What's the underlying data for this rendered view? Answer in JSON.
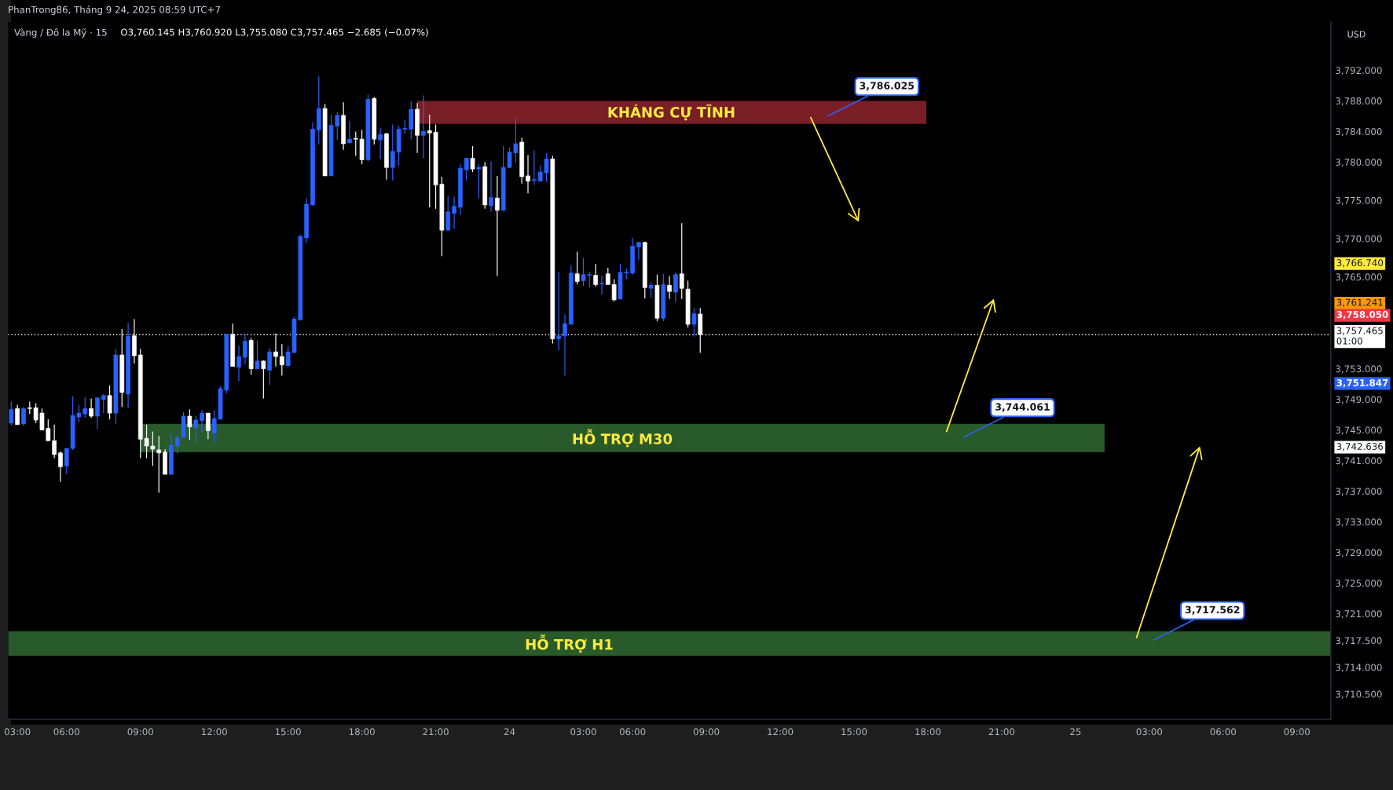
{
  "chart_data": {
    "type": "candlestick",
    "title": "Vàng / Đô la Mỹ · 15",
    "subtitle": "O3,760.145 H3,760.920 L3,755.080 C3,757.465 −2.685 (−0.07%)",
    "categories": [
      null,
      "03:00",
      null,
      null,
      null,
      null,
      null,
      null,
      null,
      "06:00",
      null,
      null,
      null,
      null,
      null,
      null,
      null,
      null,
      null,
      null,
      null,
      "09:00",
      null,
      null,
      null,
      null,
      null,
      null,
      null,
      null,
      null,
      null,
      null,
      "12:00",
      null,
      null,
      null,
      null,
      null,
      null,
      null,
      null,
      null,
      null,
      null,
      "15:00",
      null,
      null,
      null,
      null,
      null,
      null,
      null,
      null,
      null,
      null,
      null,
      "18:00",
      null,
      null,
      null,
      null,
      null,
      null,
      null,
      null,
      null,
      null,
      null,
      "21:00",
      null,
      null,
      null,
      null,
      null,
      null,
      null,
      null,
      null,
      null,
      null,
      "24",
      null,
      null,
      null,
      null,
      null,
      null,
      null,
      null,
      null,
      null,
      null,
      "03:00",
      null,
      null,
      null,
      null,
      null,
      null,
      null,
      "06:00",
      null,
      null,
      null,
      null,
      null,
      null,
      null,
      null,
      null,
      null,
      null,
      "09:00",
      null,
      null,
      null,
      null,
      null,
      null,
      null,
      null,
      null,
      null,
      null,
      "12:00",
      null,
      null,
      null,
      null,
      null,
      null,
      null,
      null,
      null,
      null,
      null,
      "15:00",
      null,
      null,
      null,
      null,
      null,
      null,
      null,
      null,
      null,
      null,
      null,
      "18:00",
      null,
      null,
      null,
      null,
      null,
      null,
      null,
      null,
      null,
      null,
      null,
      "21:00",
      null,
      null,
      null,
      null,
      null,
      null,
      null,
      null,
      null,
      null,
      null,
      "25",
      null,
      null,
      null,
      null,
      null,
      null,
      null,
      null,
      null,
      null,
      null,
      "03:00",
      null,
      null,
      null,
      null,
      null,
      null,
      null,
      null,
      null,
      null,
      null,
      "06:00",
      null,
      null,
      null,
      null,
      null,
      null,
      null,
      null,
      null,
      null,
      null,
      "09:00",
      null,
      null,
      null,
      null,
      null
    ],
    "ohlc": [
      [
        3745.9,
        3748.7,
        3745.6,
        3747.7
      ],
      [
        3747.8,
        3748.3,
        3745.7,
        3745.7
      ],
      [
        3745.8,
        3748.0,
        3745.6,
        3747.8
      ],
      [
        3747.9,
        3748.7,
        3747.1,
        3747.8
      ],
      [
        3747.9,
        3748.5,
        3745.9,
        3746.3
      ],
      [
        3747.2,
        3747.8,
        3745.0,
        3745.0
      ],
      [
        3745.2,
        3746.4,
        3743.6,
        3743.6
      ],
      [
        3743.6,
        3745.7,
        3741.3,
        3741.8
      ],
      [
        3742.0,
        3742.2,
        3738.2,
        3740.2
      ],
      [
        3740.3,
        3742.6,
        3739.2,
        3742.6
      ],
      [
        3742.6,
        3749.4,
        3742.4,
        3746.9
      ],
      [
        3746.7,
        3748.3,
        3746.0,
        3747.2
      ],
      [
        3747.1,
        3749.3,
        3746.6,
        3747.8
      ],
      [
        3747.8,
        3749.1,
        3746.6,
        3746.8
      ],
      [
        3746.8,
        3749.3,
        3745.1,
        3749.2
      ],
      [
        3749.0,
        3749.7,
        3747.2,
        3749.5
      ],
      [
        3749.5,
        3750.8,
        3746.4,
        3747.2
      ],
      [
        3747.2,
        3755.6,
        3745.8,
        3754.8
      ],
      [
        3754.8,
        3758.2,
        3748.0,
        3749.9
      ],
      [
        3749.7,
        3759.0,
        3747.9,
        3757.2
      ],
      [
        3757.3,
        3759.5,
        3753.7,
        3754.7
      ],
      [
        3754.8,
        3755.6,
        3741.3,
        3743.8
      ],
      [
        3743.9,
        3745.7,
        3741.3,
        3742.9
      ],
      [
        3742.9,
        3744.8,
        3740.3,
        3742.5
      ],
      [
        3742.4,
        3744.2,
        3736.8,
        3742.0
      ],
      [
        3742.1,
        3742.5,
        3739.2,
        3739.2
      ],
      [
        3739.2,
        3744.6,
        3739.2,
        3743.0
      ],
      [
        3742.9,
        3744.3,
        3741.9,
        3744.0
      ],
      [
        3744.0,
        3747.3,
        3744.0,
        3746.8
      ],
      [
        3746.8,
        3747.7,
        3743.7,
        3745.4
      ],
      [
        3745.3,
        3746.8,
        3743.3,
        3746.3
      ],
      [
        3746.2,
        3747.6,
        3744.7,
        3747.2
      ],
      [
        3747.2,
        3747.2,
        3743.8,
        3744.9
      ],
      [
        3744.6,
        3747.6,
        3743.4,
        3746.5
      ],
      [
        3746.4,
        3750.7,
        3746.4,
        3750.4
      ],
      [
        3750.2,
        3757.5,
        3749.8,
        3757.5
      ],
      [
        3757.5,
        3758.9,
        3753.3,
        3753.3
      ],
      [
        3753.2,
        3756.0,
        3751.4,
        3754.6
      ],
      [
        3754.5,
        3757.6,
        3753.6,
        3756.6
      ],
      [
        3756.7,
        3757.0,
        3752.2,
        3753.0
      ],
      [
        3753.0,
        3756.7,
        3753.0,
        3754.0
      ],
      [
        3754.0,
        3754.1,
        3749.1,
        3753.0
      ],
      [
        3752.8,
        3755.7,
        3750.9,
        3755.2
      ],
      [
        3755.2,
        3757.6,
        3753.3,
        3754.6
      ],
      [
        3754.6,
        3756.2,
        3752.1,
        3753.5
      ],
      [
        3753.4,
        3756.0,
        3753.3,
        3755.2
      ],
      [
        3755.1,
        3759.8,
        3755.1,
        3759.5
      ],
      [
        3759.4,
        3770.5,
        3759.3,
        3770.3
      ],
      [
        3770.1,
        3775.3,
        3769.4,
        3774.5
      ],
      [
        3774.4,
        3785.2,
        3774.3,
        3784.3
      ],
      [
        3784.2,
        3791.2,
        3782.3,
        3787.0
      ],
      [
        3787.0,
        3787.6,
        3778.2,
        3778.2
      ],
      [
        3778.2,
        3786.2,
        3778.2,
        3784.8
      ],
      [
        3784.7,
        3786.5,
        3782.9,
        3786.1
      ],
      [
        3786.1,
        3787.8,
        3781.6,
        3782.4
      ],
      [
        3782.5,
        3785.4,
        3782.5,
        3783.0
      ],
      [
        3783.1,
        3784.0,
        3780.8,
        3783.0
      ],
      [
        3783.0,
        3784.2,
        3779.7,
        3780.3
      ],
      [
        3780.3,
        3788.8,
        3780.1,
        3788.2
      ],
      [
        3788.3,
        3788.5,
        3782.3,
        3783.0
      ],
      [
        3782.9,
        3784.5,
        3780.4,
        3783.6
      ],
      [
        3783.7,
        3783.8,
        3777.7,
        3779.3
      ],
      [
        3779.3,
        3784.9,
        3777.6,
        3781.4
      ],
      [
        3781.3,
        3784.7,
        3779.5,
        3784.3
      ],
      [
        3784.3,
        3785.5,
        3783.7,
        3784.4
      ],
      [
        3784.3,
        3787.9,
        3783.0,
        3786.9
      ],
      [
        3786.9,
        3787.7,
        3781.2,
        3783.5
      ],
      [
        3783.5,
        3788.7,
        3780.5,
        3784.0
      ],
      [
        3784.1,
        3786.2,
        3774.1,
        3783.8
      ],
      [
        3783.9,
        3784.9,
        3773.9,
        3777.0
      ],
      [
        3777.1,
        3778.1,
        3767.7,
        3771.1
      ],
      [
        3771.1,
        3775.6,
        3771.0,
        3773.5
      ],
      [
        3773.3,
        3775.5,
        3771.3,
        3774.2
      ],
      [
        3774.1,
        3779.7,
        3773.1,
        3779.2
      ],
      [
        3779.0,
        3780.5,
        3777.6,
        3780.5
      ],
      [
        3780.5,
        3782.1,
        3778.7,
        3779.1
      ],
      [
        3779.1,
        3779.7,
        3775.3,
        3779.3
      ],
      [
        3779.4,
        3780.0,
        3773.9,
        3774.4
      ],
      [
        3774.3,
        3780.1,
        3773.5,
        3775.4
      ],
      [
        3775.3,
        3778.2,
        3765.1,
        3773.7
      ],
      [
        3773.7,
        3782.1,
        3773.6,
        3779.3
      ],
      [
        3779.3,
        3781.9,
        3779.2,
        3781.3
      ],
      [
        3781.2,
        3785.8,
        3779.9,
        3782.4
      ],
      [
        3782.6,
        3783.2,
        3777.2,
        3778.1
      ],
      [
        3778.2,
        3780.9,
        3775.9,
        3777.5
      ],
      [
        3777.6,
        3781.5,
        3777.0,
        3777.7
      ],
      [
        3777.5,
        3779.5,
        3777.5,
        3778.7
      ],
      [
        3778.6,
        3781.2,
        3777.4,
        3780.4
      ],
      [
        3780.4,
        3780.8,
        3756.3,
        3756.9
      ],
      [
        3756.9,
        3765.7,
        3755.4,
        3757.3
      ],
      [
        3757.3,
        3760.1,
        3752.1,
        3758.9
      ],
      [
        3758.8,
        3766.5,
        3758.8,
        3765.5
      ],
      [
        3765.4,
        3768.3,
        3764.0,
        3764.4
      ],
      [
        3764.5,
        3767.5,
        3763.8,
        3765.3
      ],
      [
        3765.2,
        3765.7,
        3763.6,
        3765.3
      ],
      [
        3765.2,
        3766.7,
        3763.7,
        3764.0
      ],
      [
        3764.1,
        3765.2,
        3762.7,
        3764.2
      ],
      [
        3765.4,
        3766.2,
        3764.0,
        3764.0
      ],
      [
        3764.0,
        3764.7,
        3761.8,
        3762.0
      ],
      [
        3762.1,
        3766.7,
        3762.1,
        3765.6
      ],
      [
        3765.5,
        3766.1,
        3764.7,
        3765.6
      ],
      [
        3765.5,
        3770.1,
        3765.3,
        3769.0
      ],
      [
        3768.9,
        3769.6,
        3767.2,
        3769.5
      ],
      [
        3769.5,
        3769.6,
        3762.2,
        3763.6
      ],
      [
        3763.5,
        3764.3,
        3762.3,
        3763.9
      ],
      [
        3763.9,
        3765.3,
        3759.2,
        3759.6
      ],
      [
        3759.6,
        3765.4,
        3759.2,
        3764.0
      ],
      [
        3763.9,
        3765.1,
        3762.1,
        3763.1
      ],
      [
        3763.0,
        3765.6,
        3761.7,
        3765.3
      ],
      [
        3765.4,
        3772.0,
        3762.1,
        3763.5
      ],
      [
        3763.4,
        3764.5,
        3758.4,
        3758.8
      ],
      [
        3758.8,
        3760.9,
        3757.2,
        3760.2
      ],
      [
        3760.145,
        3760.92,
        3755.08,
        3757.465
      ],
      null,
      null,
      null,
      null,
      null,
      null,
      null,
      null,
      null,
      null,
      null,
      null,
      null,
      null,
      null,
      null,
      null,
      null,
      null,
      null,
      null,
      null,
      null,
      null,
      null,
      null,
      null,
      null,
      null,
      null,
      null,
      null,
      null,
      null,
      null,
      null,
      null,
      null,
      null,
      null,
      null,
      null,
      null,
      null,
      null,
      null,
      null,
      null,
      null,
      null,
      null,
      null,
      null,
      null,
      null,
      null,
      null,
      null,
      null,
      null,
      null,
      null,
      null,
      null,
      null,
      null,
      null,
      null,
      null,
      null,
      null,
      null,
      null,
      null,
      null,
      null,
      null,
      null,
      null,
      null,
      null,
      null,
      null,
      null,
      null,
      null,
      null,
      null,
      null,
      null,
      null,
      null,
      null,
      null,
      null,
      null,
      null,
      null,
      null,
      null,
      null,
      null
    ],
    "colors": [
      "#2962ff",
      "#ffffff",
      "#2962ff",
      "#ffffff",
      "#ffffff",
      "#ffffff",
      "#ffffff",
      "#ffffff",
      "#ffffff",
      "#2962ff",
      "#2962ff",
      "#2962ff",
      "#2962ff",
      "#ffffff",
      "#2962ff",
      "#2962ff",
      "#ffffff",
      "#2962ff",
      "#ffffff",
      "#2962ff",
      "#ffffff",
      "#ffffff",
      "#ffffff",
      "#ffffff",
      "#ffffff",
      "#ffffff",
      "#2962ff",
      "#2962ff",
      "#2962ff",
      "#ffffff",
      "#2962ff",
      "#2962ff",
      "#ffffff",
      "#2962ff",
      "#2962ff",
      "#2962ff",
      "#ffffff",
      "#2962ff",
      "#2962ff",
      "#ffffff",
      "#2962ff",
      "#ffffff",
      "#2962ff",
      "#ffffff",
      "#ffffff",
      "#2962ff",
      "#2962ff",
      "#2962ff",
      "#2962ff",
      "#2962ff",
      "#2962ff",
      "#ffffff",
      "#2962ff",
      "#2962ff",
      "#ffffff",
      "#2962ff",
      "#ffffff",
      "#ffffff",
      "#2962ff",
      "#ffffff",
      "#2962ff",
      "#ffffff",
      "#2962ff",
      "#2962ff",
      "#2962ff",
      "#2962ff",
      "#ffffff",
      "#2962ff",
      "#ffffff",
      "#ffffff",
      "#ffffff",
      "#2962ff",
      "#2962ff",
      "#2962ff",
      "#2962ff",
      "#ffffff",
      "#2962ff",
      "#ffffff",
      "#2962ff",
      "#ffffff",
      "#2962ff",
      "#2962ff",
      "#2962ff",
      "#ffffff",
      "#ffffff",
      "#2962ff",
      "#2962ff",
      "#2962ff",
      "#ffffff",
      "#2962ff",
      "#2962ff",
      "#2962ff",
      "#ffffff",
      "#2962ff",
      "#2962ff",
      "#ffffff",
      "#2962ff",
      "#ffffff",
      "#ffffff",
      "#2962ff",
      "#2962ff",
      "#2962ff",
      "#2962ff",
      "#ffffff",
      "#2962ff",
      "#ffffff",
      "#2962ff",
      "#ffffff",
      "#2962ff",
      "#ffffff",
      "#ffffff",
      "#2962ff",
      "#ffffff",
      null,
      null,
      null,
      null,
      null,
      null,
      null,
      null,
      null,
      null,
      null,
      null,
      null,
      null,
      null,
      null,
      null,
      null,
      null,
      null,
      null,
      null,
      null,
      null,
      null,
      null,
      null,
      null,
      null,
      null,
      null,
      null,
      null,
      null,
      null,
      null,
      null,
      null,
      null,
      null,
      null,
      null,
      null,
      null,
      null,
      null,
      null,
      null,
      null,
      null,
      null,
      null,
      null,
      null,
      null,
      null,
      null,
      null,
      null,
      null,
      null,
      null,
      null,
      null,
      null,
      null,
      null,
      null,
      null,
      null,
      null,
      null,
      null,
      null,
      null,
      null,
      null,
      null,
      null,
      null,
      null,
      null,
      null,
      null,
      null,
      null,
      null,
      null,
      null,
      null,
      null,
      null,
      null,
      null,
      null,
      null,
      null,
      null,
      null,
      null,
      null,
      null
    ],
    "ylim": [
      3707.2,
      3798.3
    ],
    "yticks": [
      {
        "value": 3792,
        "label": "3,792.000"
      },
      {
        "value": 3788,
        "label": "3,788.000"
      },
      {
        "value": 3784,
        "label": "3,784.000"
      },
      {
        "value": 3780,
        "label": "3,780.000"
      },
      {
        "value": 3775,
        "label": "3,775.000"
      },
      {
        "value": 3770,
        "label": "3,770.000"
      },
      {
        "value": 3765,
        "label": "3,765.000"
      },
      {
        "value": 3753,
        "label": "3,753.000"
      },
      {
        "value": 3749,
        "label": "3,749.000"
      },
      {
        "value": 3745,
        "label": "3,745.000"
      },
      {
        "value": 3741,
        "label": "3,741.000"
      },
      {
        "value": 3737,
        "label": "3,737.000"
      },
      {
        "value": 3733,
        "label": "3,733.000"
      },
      {
        "value": 3729,
        "label": "3,729.000"
      },
      {
        "value": 3725,
        "label": "3,725.000"
      },
      {
        "value": 3721,
        "label": "3,721.000"
      },
      {
        "value": 3717.5,
        "label": "3,717.500"
      },
      {
        "value": 3714,
        "label": "3,714.000"
      },
      {
        "value": 3710.5,
        "label": "3,710.500"
      }
    ],
    "bands": [
      {
        "axis": "y",
        "from": 3785.0,
        "to": 3788.0,
        "label": "KHÁNG CỰ TĨNH",
        "color": "#7a1e26"
      },
      {
        "axis": "y",
        "from": 3742.1,
        "to": 3745.8,
        "label": "HỖ TRỢ M30",
        "color": "#285a2a"
      },
      {
        "axis": "y",
        "from": 3715.5,
        "to": 3718.7,
        "label": "HỖ TRỢ H1",
        "color": "#285a2a"
      }
    ],
    "ref_lines": [
      {
        "axis": "y",
        "value": 3757.465,
        "label": "3,757.465\n01:00",
        "color": "#ffffff",
        "line_style": "dotted"
      }
    ],
    "annotations": [
      "PhanTrong86, Tháng 9 24, 2025 08:59 UTC+7",
      "USD",
      "3,766.740",
      "3,761.241",
      "3,758.050",
      "3,751.847",
      "3,742.636",
      "3,786.025",
      "3,744.061",
      "3,717.562"
    ]
  }
}
